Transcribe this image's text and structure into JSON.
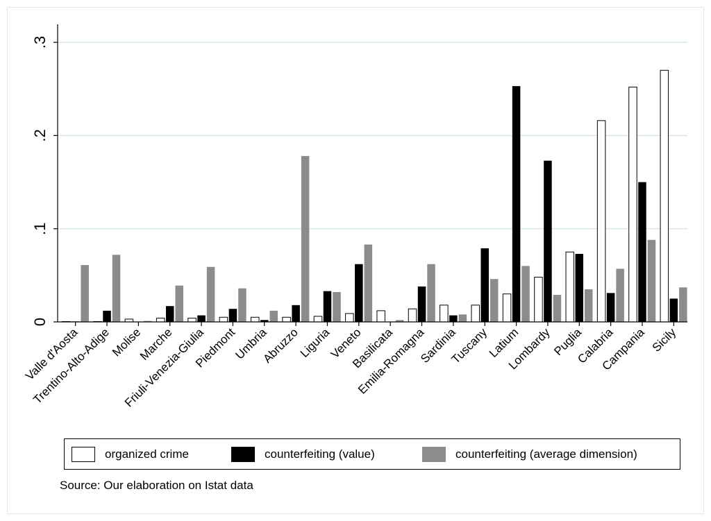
{
  "chart_data": {
    "type": "bar",
    "categories": [
      "Valle d'Aosta",
      "Trentino-Alto-Adige",
      "Molise",
      "Marche",
      "Friuli-Venezia-Giulia",
      "Piedmont",
      "Umbria",
      "Abruzzo",
      "Liguria",
      "Veneto",
      "Basilicata",
      "Emilia-Romagna",
      "Sardinia",
      "Tuscany",
      "Latium",
      "Lombardy",
      "Puglia",
      "Calabria",
      "Campania",
      "Sicily"
    ],
    "series": [
      {
        "name": "organized crime",
        "color": "#ffffff",
        "values": [
          0,
          0,
          0.003,
          0.004,
          0.004,
          0.005,
          0.005,
          0.005,
          0.006,
          0.009,
          0.012,
          0.014,
          0.018,
          0.018,
          0.03,
          0.048,
          0.075,
          0.216,
          0.252,
          0.27
        ]
      },
      {
        "name": "counterfeiting (value)",
        "color": "#000000",
        "values": [
          0.0005,
          0.012,
          0,
          0.017,
          0.007,
          0.014,
          0.002,
          0.018,
          0.033,
          0.062,
          0,
          0.038,
          0.007,
          0.079,
          0.253,
          0.173,
          0.073,
          0.031,
          0.15,
          0.025
        ]
      },
      {
        "name": "counterfeiting (average dimension)",
        "color": "#8c8c8c",
        "values": [
          0.061,
          0.072,
          0.001,
          0.039,
          0.059,
          0.036,
          0.012,
          0.178,
          0.032,
          0.083,
          0.002,
          0.062,
          0.008,
          0.046,
          0.06,
          0.029,
          0.035,
          0.057,
          0.088,
          0.037
        ]
      }
    ],
    "yticks": [
      0,
      0.1,
      0.2,
      0.3
    ],
    "ytick_labels": [
      "0",
      ".1",
      ".2",
      ".3"
    ],
    "ylim": [
      0,
      0.32
    ],
    "grid": true,
    "legend_position": "bottom"
  },
  "source_note": "Source: Our elaboration on Istat data"
}
